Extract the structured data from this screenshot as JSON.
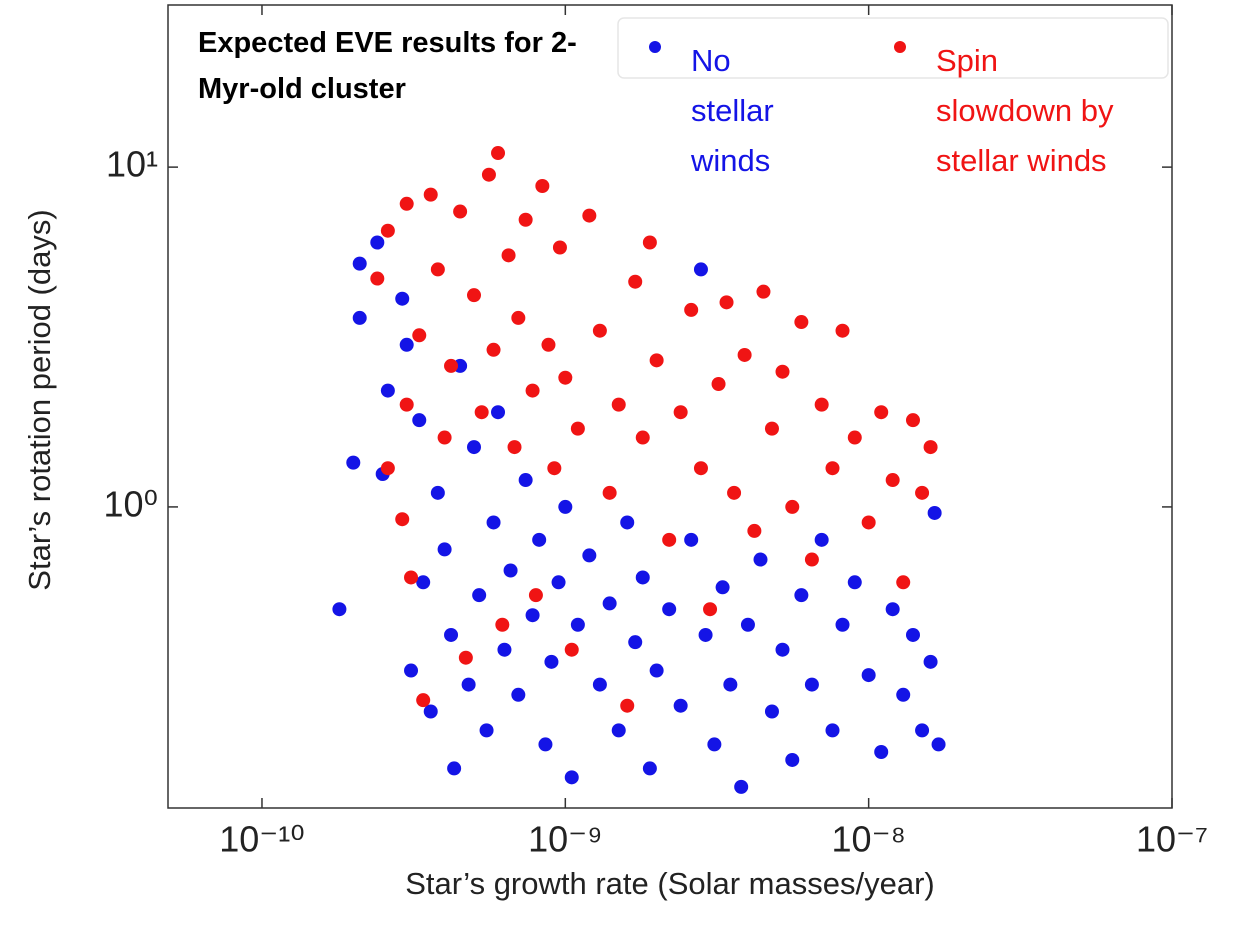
{
  "chart_data": {
    "type": "scatter",
    "annotation": "Expected EVE results for 2-Myr-old cluster",
    "x_label": "Star’s growth rate (Solar masses/year)",
    "y_label": "Star’s rotation period (days)",
    "xscale": "log",
    "yscale": "log",
    "xlim": [
      4.9e-11,
      1e-07
    ],
    "ylim": [
      0.13,
      30
    ],
    "xticks": [
      {
        "value": 1e-10,
        "label": "10⁻¹⁰"
      },
      {
        "value": 1e-09,
        "label": "10⁻⁹"
      },
      {
        "value": 1e-08,
        "label": "10⁻⁸"
      },
      {
        "value": 1e-07,
        "label": "10⁻⁷"
      }
    ],
    "yticks": [
      {
        "value": 1,
        "label": "10⁰"
      },
      {
        "value": 10,
        "label": "10¹"
      }
    ],
    "legend": "top-right",
    "series": [
      {
        "name": "No stellar winds",
        "color": "#1414e6",
        "x": [
          1.8e-10,
          2e-10,
          2.1e-10,
          2.1e-10,
          2.4e-10,
          2.6e-10,
          2.5e-10,
          2.9e-10,
          3e-10,
          3.1e-10,
          3.3e-10,
          3.4e-10,
          3.6e-10,
          3.8e-10,
          4e-10,
          4.2e-10,
          4.3e-10,
          4.5e-10,
          4.8e-10,
          5e-10,
          5.2e-10,
          5.5e-10,
          5.8e-10,
          6e-10,
          6.3e-10,
          6.6e-10,
          7e-10,
          7.4e-10,
          7.8e-10,
          8.2e-10,
          8.6e-10,
          9e-10,
          9.5e-10,
          1e-09,
          1.05e-09,
          1.1e-09,
          1.2e-09,
          1.3e-09,
          1.4e-09,
          1.5e-09,
          1.6e-09,
          1.7e-09,
          1.8e-09,
          1.9e-09,
          2e-09,
          2.2e-09,
          2.4e-09,
          2.6e-09,
          2.8e-09,
          2.9e-09,
          3.1e-09,
          3.3e-09,
          3.5e-09,
          3.8e-09,
          4e-09,
          4.4e-09,
          4.8e-09,
          5.2e-09,
          5.6e-09,
          6e-09,
          6.5e-09,
          7e-09,
          7.6e-09,
          8.2e-09,
          9e-09,
          1e-08,
          1.1e-08,
          1.2e-08,
          1.3e-08,
          1.4e-08,
          1.5e-08,
          1.6e-08,
          1.65e-08,
          1.7e-08
        ],
        "values": [
          0.5,
          1.35,
          3.6,
          5.2,
          6.0,
          2.2,
          1.25,
          4.1,
          3.0,
          0.33,
          1.8,
          0.6,
          0.25,
          1.1,
          0.75,
          0.42,
          0.17,
          2.6,
          0.3,
          1.5,
          0.55,
          0.22,
          0.9,
          1.9,
          0.38,
          0.65,
          0.28,
          1.2,
          0.48,
          0.8,
          0.2,
          0.35,
          0.6,
          1.0,
          0.16,
          0.45,
          0.72,
          0.3,
          0.52,
          0.22,
          0.9,
          0.4,
          0.62,
          0.17,
          0.33,
          0.5,
          0.26,
          0.8,
          5.0,
          0.42,
          0.2,
          0.58,
          0.3,
          0.15,
          0.45,
          0.7,
          0.25,
          0.38,
          0.18,
          0.55,
          0.3,
          0.8,
          0.22,
          0.45,
          0.6,
          0.32,
          0.19,
          0.5,
          0.28,
          0.42,
          0.22,
          0.35,
          0.96,
          0.2
        ]
      },
      {
        "name": "Spin slowdown by stellar winds",
        "color": "#f01414",
        "x": [
          2.4e-10,
          2.6e-10,
          2.6e-10,
          2.9e-10,
          3e-10,
          3e-10,
          3.1e-10,
          3.3e-10,
          3.4e-10,
          3.6e-10,
          3.8e-10,
          4e-10,
          4.2e-10,
          4.5e-10,
          4.7e-10,
          5e-10,
          5.3e-10,
          5.6e-10,
          5.8e-10,
          6e-10,
          6.2e-10,
          6.5e-10,
          6.8e-10,
          7e-10,
          7.4e-10,
          7.8e-10,
          8e-10,
          8.4e-10,
          8.8e-10,
          9.2e-10,
          9.6e-10,
          1e-09,
          1.05e-09,
          1.1e-09,
          1.2e-09,
          1.3e-09,
          1.4e-09,
          1.5e-09,
          1.6e-09,
          1.7e-09,
          1.8e-09,
          1.9e-09,
          2e-09,
          2.2e-09,
          2.4e-09,
          2.6e-09,
          2.8e-09,
          3e-09,
          3.2e-09,
          3.4e-09,
          3.6e-09,
          3.9e-09,
          4.2e-09,
          4.5e-09,
          4.8e-09,
          5.2e-09,
          5.6e-09,
          6e-09,
          6.5e-09,
          7e-09,
          7.6e-09,
          8.2e-09,
          9e-09,
          1e-08,
          1.1e-08,
          1.2e-08,
          1.3e-08,
          1.4e-08,
          1.5e-08,
          1.6e-08
        ],
        "values": [
          4.7,
          6.5,
          1.3,
          0.92,
          7.8,
          2.0,
          0.62,
          3.2,
          0.27,
          8.3,
          5.0,
          1.6,
          2.6,
          7.4,
          0.36,
          4.2,
          1.9,
          9.5,
          2.9,
          11.0,
          0.45,
          5.5,
          1.5,
          3.6,
          7.0,
          2.2,
          0.55,
          8.8,
          3.0,
          1.3,
          5.8,
          2.4,
          0.38,
          1.7,
          7.2,
          3.3,
          1.1,
          2.0,
          0.26,
          4.6,
          1.6,
          6.0,
          2.7,
          0.8,
          1.9,
          3.8,
          1.3,
          0.5,
          2.3,
          4.0,
          1.1,
          2.8,
          0.85,
          4.3,
          1.7,
          2.5,
          1.0,
          3.5,
          0.7,
          2.0,
          1.3,
          3.3,
          1.6,
          0.9,
          1.9,
          1.2,
          0.6,
          1.8,
          1.1,
          1.5
        ]
      }
    ]
  }
}
